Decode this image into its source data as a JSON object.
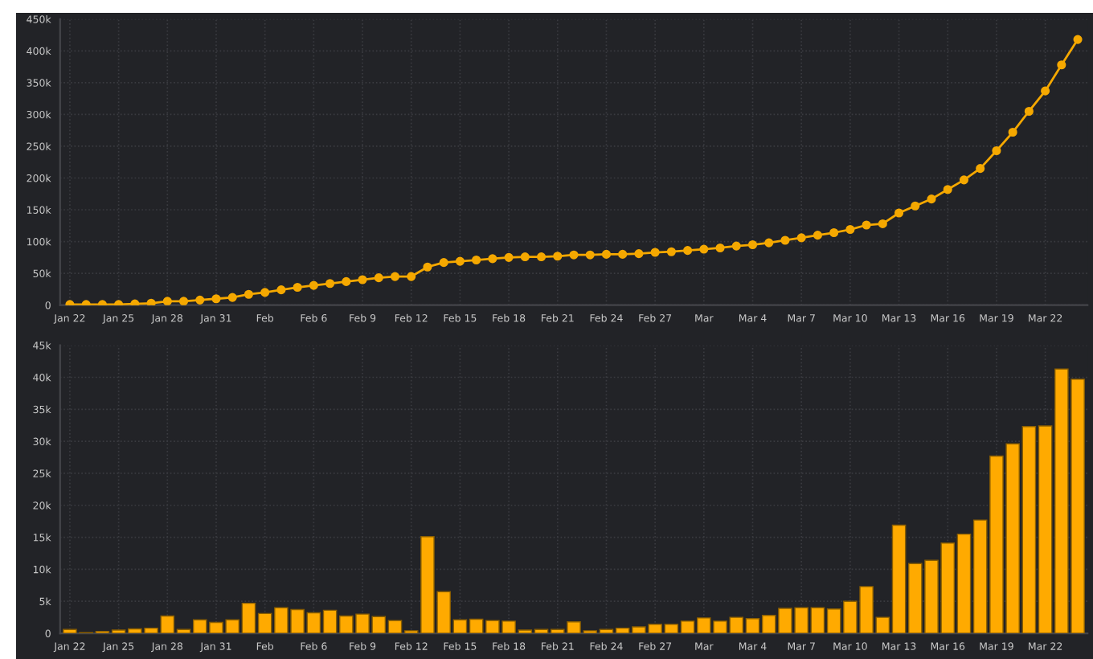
{
  "chart_data": [
    {
      "type": "line",
      "categories": [
        "Jan 22",
        null,
        null,
        "Jan 25",
        null,
        null,
        "Jan 28",
        null,
        null,
        "Jan 31",
        null,
        null,
        "Feb",
        null,
        null,
        "Feb 6",
        null,
        null,
        "Feb 9",
        null,
        null,
        "Feb 12",
        null,
        null,
        "Feb 15",
        null,
        null,
        "Feb 18",
        null,
        null,
        "Feb 21",
        null,
        null,
        "Feb 24",
        null,
        null,
        "Feb 27",
        null,
        null,
        "Mar",
        null,
        null,
        "Mar 4",
        null,
        null,
        "Mar 7",
        null,
        null,
        "Mar 10",
        null,
        null,
        "Mar 13",
        null,
        null,
        "Mar 16",
        null,
        null,
        "Mar 19",
        null,
        null,
        "Mar 22",
        null,
        null
      ],
      "series": [
        {
          "color": "#f5a800",
          "values": [
            1000,
            1000,
            1000,
            1000,
            2000,
            3000,
            6000,
            6000,
            8000,
            10000,
            12000,
            17000,
            20000,
            24000,
            28000,
            31000,
            34000,
            37000,
            40000,
            43000,
            45000,
            45000,
            60000,
            67000,
            69000,
            71000,
            73000,
            75000,
            76000,
            76000,
            77000,
            79000,
            79000,
            80000,
            80000,
            81000,
            83000,
            84000,
            86000,
            88000,
            90000,
            93000,
            95000,
            98000,
            102000,
            106000,
            110000,
            114000,
            119000,
            126000,
            128000,
            145000,
            156000,
            167000,
            182000,
            197000,
            215000,
            243000,
            272000,
            305000,
            337000,
            378000,
            418000
          ]
        }
      ],
      "ylim": [
        0,
        450000
      ],
      "yticks": [
        0,
        {
          "value": 50000,
          "label": "50k"
        },
        {
          "value": 100000,
          "label": "100k"
        },
        {
          "value": 150000,
          "label": "150k"
        },
        {
          "value": 200000,
          "label": "200k"
        },
        {
          "value": 250000,
          "label": "250k"
        },
        {
          "value": 300000,
          "label": "300k"
        },
        {
          "value": 350000,
          "label": "350k"
        },
        {
          "value": 400000,
          "label": "400k"
        },
        {
          "value": 450000,
          "label": "450k"
        }
      ],
      "marker": "circle",
      "line_style": "solid",
      "grid": true,
      "legend": false
    },
    {
      "type": "bar",
      "categories": [
        "Jan 22",
        null,
        null,
        "Jan 25",
        null,
        null,
        "Jan 28",
        null,
        null,
        "Jan 31",
        null,
        null,
        "Feb",
        null,
        null,
        "Feb 6",
        null,
        null,
        "Feb 9",
        null,
        null,
        "Feb 12",
        null,
        null,
        "Feb 15",
        null,
        null,
        "Feb 18",
        null,
        null,
        "Feb 21",
        null,
        null,
        "Feb 24",
        null,
        null,
        "Feb 27",
        null,
        null,
        "Mar",
        null,
        null,
        "Mar 4",
        null,
        null,
        "Mar 7",
        null,
        null,
        "Mar 10",
        null,
        null,
        "Mar 13",
        null,
        null,
        "Mar 16",
        null,
        null,
        "Mar 19",
        null,
        null,
        "Mar 22",
        null,
        null
      ],
      "series": [
        {
          "color": "#ffaa00",
          "values": [
            600,
            100,
            300,
            500,
            700,
            800,
            2700,
            600,
            2100,
            1700,
            2100,
            4700,
            3100,
            4000,
            3700,
            3200,
            3600,
            2700,
            3000,
            2600,
            2000,
            400,
            15100,
            6500,
            2100,
            2200,
            2000,
            1900,
            500,
            600,
            600,
            1800,
            400,
            600,
            800,
            1000,
            1400,
            1400,
            1900,
            2400,
            1900,
            2500,
            2300,
            2800,
            3900,
            4000,
            4000,
            3800,
            5000,
            7300,
            2500,
            16900,
            10900,
            11400,
            14100,
            15500,
            17700,
            27700,
            29600,
            32300,
            32400,
            41300,
            39700
          ]
        }
      ],
      "ylim": [
        0,
        45000
      ],
      "yticks": [
        0,
        {
          "value": 5000,
          "label": "5k"
        },
        {
          "value": 10000,
          "label": "10k"
        },
        {
          "value": 15000,
          "label": "15k"
        },
        {
          "value": 20000,
          "label": "20k"
        },
        {
          "value": 25000,
          "label": "25k"
        },
        {
          "value": 30000,
          "label": "30k"
        },
        {
          "value": 35000,
          "label": "35k"
        },
        {
          "value": 40000,
          "label": "40k"
        },
        {
          "value": 45000,
          "label": "45k"
        }
      ],
      "grid": true,
      "legend": false
    }
  ]
}
